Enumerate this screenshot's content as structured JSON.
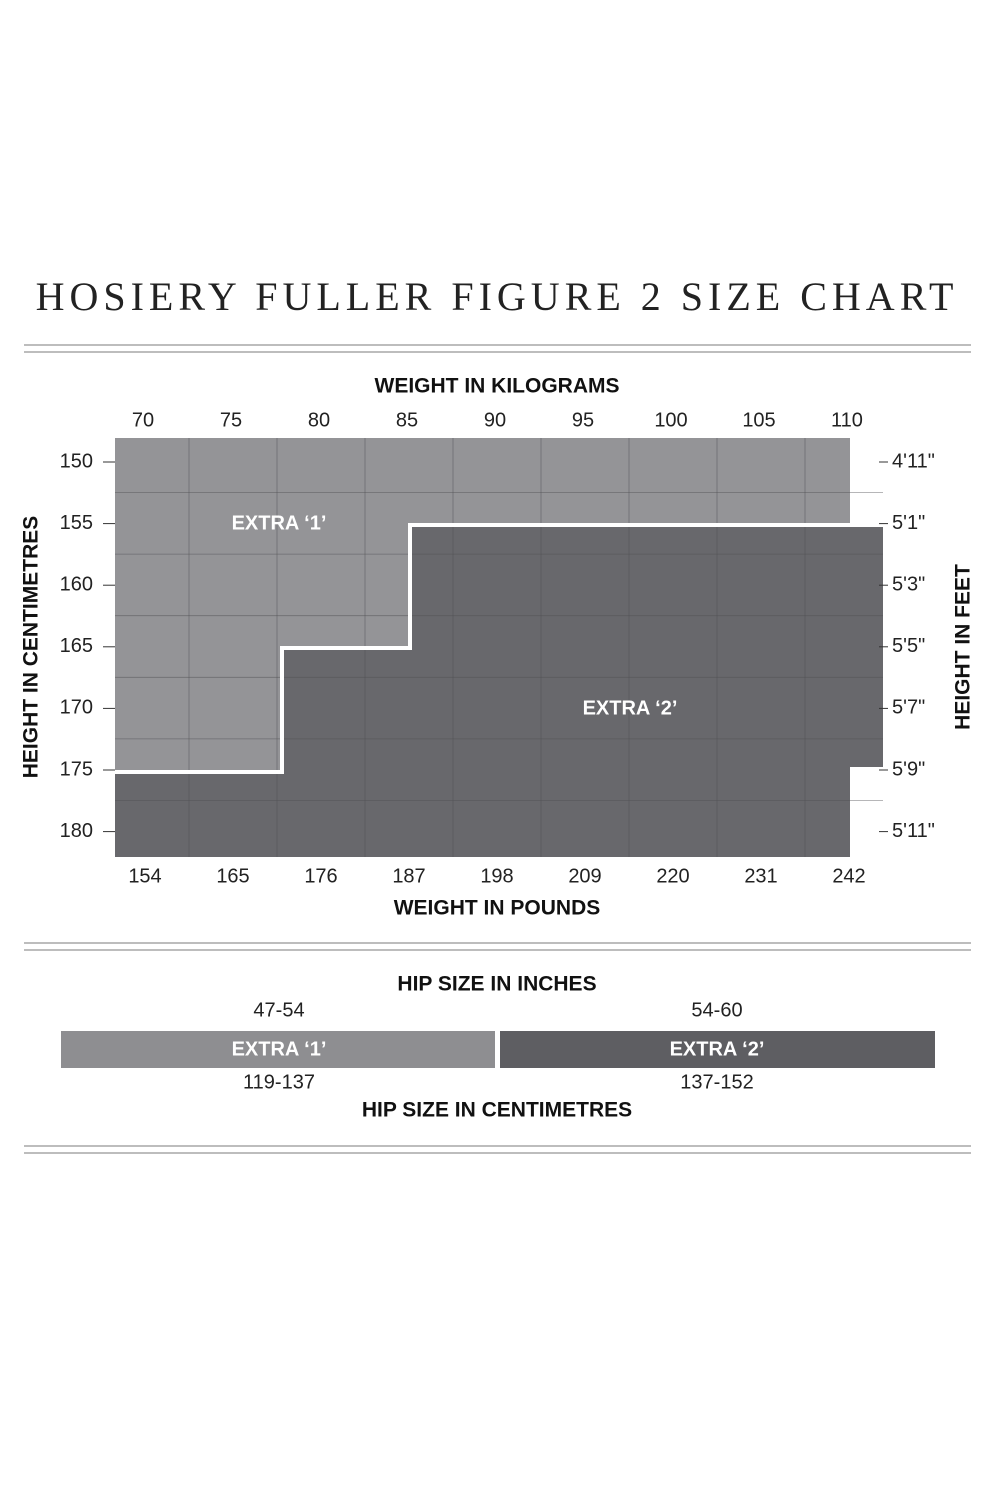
{
  "title": "HOSIERY FULLER FIGURE 2 SIZE CHART",
  "height_chart": {
    "top_axis_label": "WEIGHT IN KILOGRAMS",
    "top_ticks": [
      "70",
      "75",
      "80",
      "85",
      "90",
      "95",
      "100",
      "105",
      "110"
    ],
    "bottom_axis_label": "WEIGHT IN POUNDS",
    "bottom_ticks": [
      "154",
      "165",
      "176",
      "187",
      "198",
      "209",
      "220",
      "231",
      "242"
    ],
    "left_axis_label": "HEIGHT IN CENTIMETRES",
    "left_ticks": [
      "150",
      "155",
      "160",
      "165",
      "170",
      "175",
      "180"
    ],
    "right_axis_label": "HEIGHT IN FEET",
    "right_ticks": [
      "4'11\"",
      "5'1\"",
      "5'3\"",
      "5'5\"",
      "5'7\"",
      "5'9\"",
      "5'11\""
    ],
    "regions": [
      "EXTRA ‘1’",
      "EXTRA ‘2’"
    ]
  },
  "hip_chart": {
    "top_label": "HIP SIZE IN INCHES",
    "bottom_label": "HIP SIZE IN CENTIMETRES",
    "segments": [
      {
        "name": "EXTRA ‘1’",
        "inches": "47-54",
        "centimetres": "119-137"
      },
      {
        "name": "EXTRA ‘2’",
        "inches": "54-60",
        "centimetres": "137-152"
      }
    ]
  }
}
